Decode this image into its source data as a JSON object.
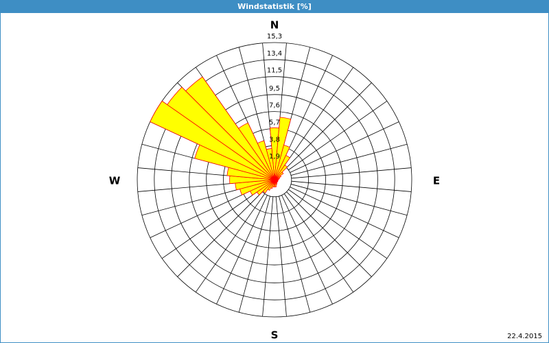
{
  "chart_data": {
    "type": "wind_rose",
    "title": "Windstatistik [%]",
    "date": "22.4.2015",
    "compass_labels": [
      "N",
      "E",
      "S",
      "W"
    ],
    "x": [
      0,
      10,
      20,
      30,
      40,
      50,
      60,
      70,
      80,
      90,
      100,
      110,
      120,
      130,
      140,
      150,
      160,
      170,
      180,
      190,
      200,
      210,
      220,
      230,
      240,
      250,
      260,
      270,
      280,
      290,
      300,
      310,
      320,
      330,
      340,
      350
    ],
    "values": [
      5.8,
      7.0,
      4.0,
      3.0,
      2.0,
      1.2,
      0.8,
      0.6,
      0.5,
      0.4,
      0.4,
      0.4,
      0.4,
      0.4,
      0.4,
      0.5,
      0.6,
      0.8,
      0.8,
      0.8,
      1.0,
      1.3,
      1.8,
      2.4,
      3.0,
      4.0,
      4.4,
      5.0,
      5.3,
      9.2,
      15.3,
      14.6,
      14.0,
      7.0,
      4.5,
      3.5
    ],
    "color": "#ffff00",
    "edge_color": "#ff0000",
    "ylim": [
      0,
      15.3
    ],
    "yticks": [
      {
        "value": 1.9,
        "label": "1,9"
      },
      {
        "value": 3.8,
        "label": "3,8"
      },
      {
        "value": 5.7,
        "label": "5,7"
      },
      {
        "value": 7.6,
        "label": "7,6"
      },
      {
        "value": 9.5,
        "label": "9,5"
      },
      {
        "value": 11.5,
        "label": "11,5"
      },
      {
        "value": 13.4,
        "label": "13,4"
      },
      {
        "value": 15.3,
        "label": "15,3"
      }
    ],
    "grid": true
  }
}
